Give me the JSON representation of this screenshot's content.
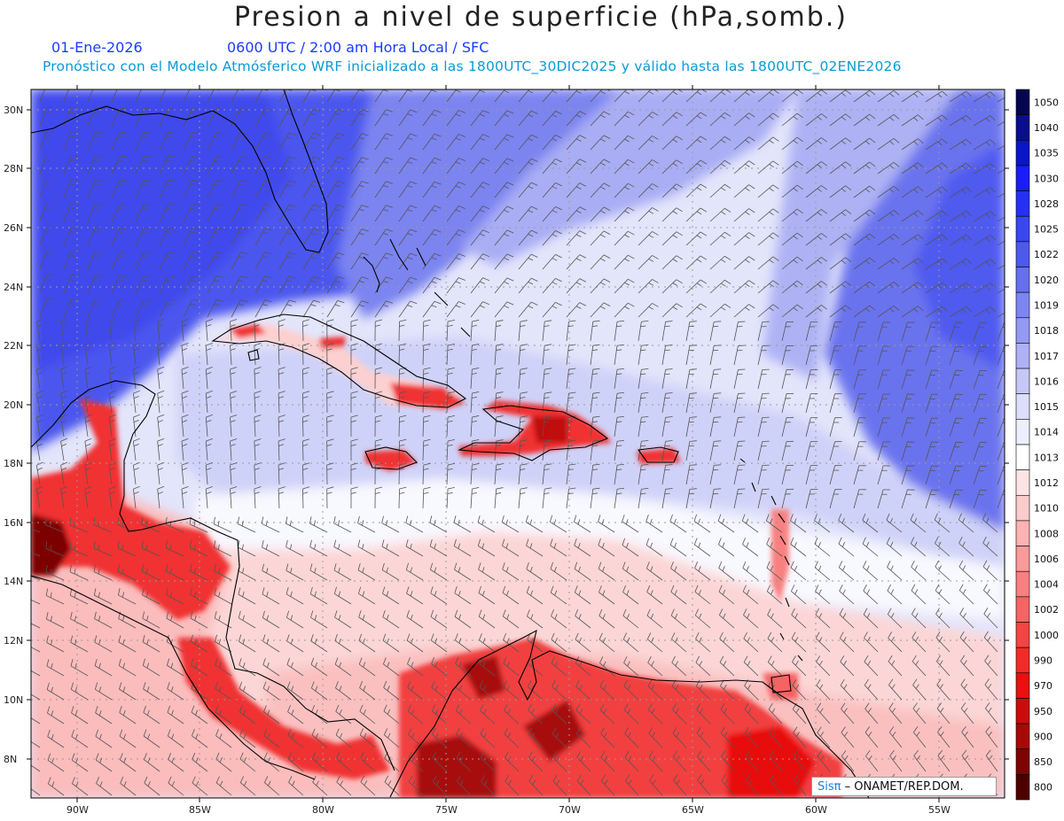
{
  "title": "Presion a nivel de superficie (hPa,somb.)",
  "date": "01-Ene-2026",
  "time_info": "0600 UTC / 2:00 am Hora Local / SFC",
  "forecast_info": "Pronóstico con el Modelo Atmósferico WRF inicializado a las 1800UTC_30DIC2025 y válido hasta las  1800UTC_02ENE2026",
  "credit": {
    "brand": "Sisπ",
    "text": " – ONAMET/REP.DOM."
  },
  "colorbar": {
    "levels": [
      "1050",
      "1040",
      "1035",
      "1030",
      "1028",
      "1025",
      "1022",
      "1020",
      "1019",
      "1018",
      "1017",
      "1016",
      "1015",
      "1014",
      "1013",
      "1012",
      "1010",
      "1008",
      "1006",
      "1004",
      "1002",
      "1000",
      "990",
      "970",
      "950",
      "900",
      "850",
      "800"
    ],
    "colors": [
      "#05064e",
      "#0a0e8c",
      "#0a14c8",
      "#1b1df5",
      "#2630f4",
      "#3a46f0",
      "#4d58ee",
      "#6670ee",
      "#7d86f0",
      "#9499f2",
      "#aeb1f4",
      "#c5c8f6",
      "#dcdefa",
      "#eeeffd",
      "#ffffff",
      "#fde4e4",
      "#fccbcb",
      "#fbb3b3",
      "#fa9b9b",
      "#f88080",
      "#f66464",
      "#f44444",
      "#f22a2a",
      "#e81010",
      "#cc0c0c",
      "#a80808",
      "#7c0404",
      "#4e0000"
    ]
  },
  "lat_labels": [
    "30N",
    "28N",
    "26N",
    "24N",
    "22N",
    "20N",
    "18N",
    "16N",
    "14N",
    "12N",
    "10N",
    "8N"
  ],
  "lon_labels": [
    "90W",
    "85W",
    "80W",
    "75W",
    "70W",
    "65W",
    "60W",
    "55W"
  ],
  "field_colors": {
    "high": "#4a55ee",
    "mid": "#b9bdf5",
    "neutral": "#ffffff",
    "low": "#fcd0d0",
    "very_low": "#f22a2a",
    "extreme": "#7c0404"
  }
}
